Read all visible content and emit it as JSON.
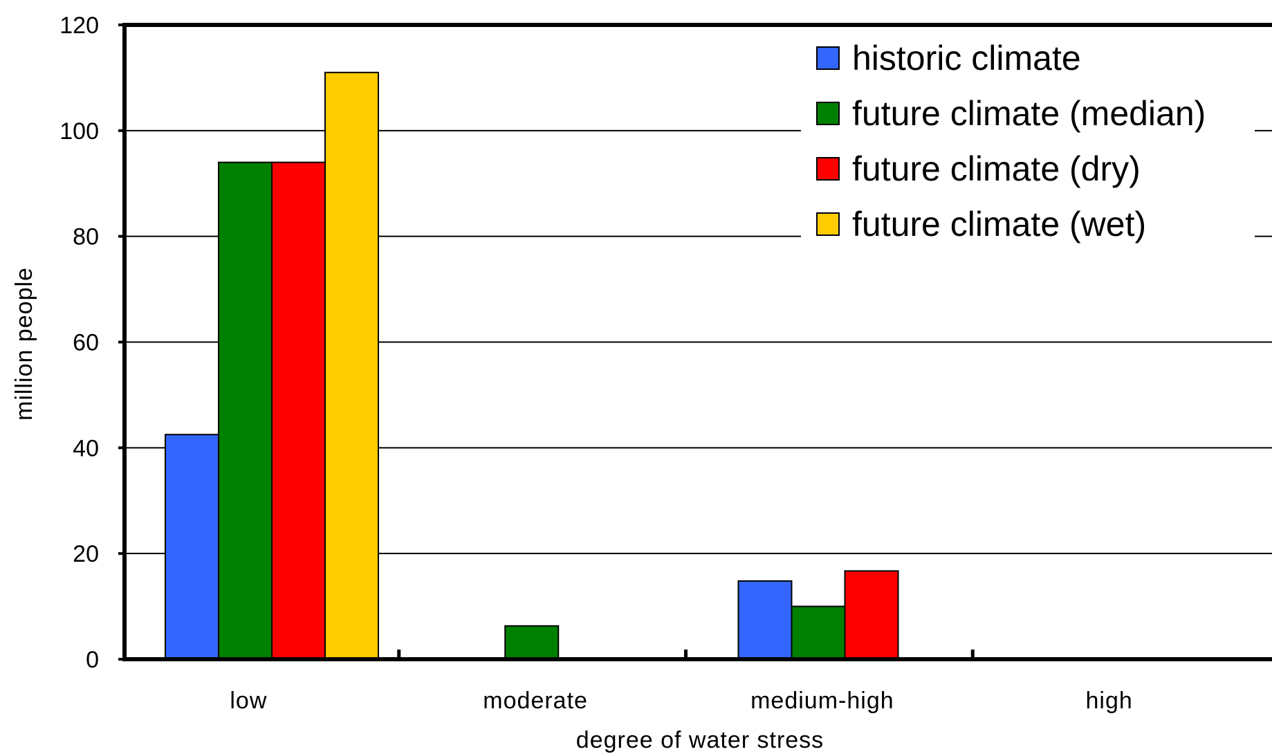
{
  "chart_data": {
    "type": "bar",
    "categories": [
      "low",
      "moderate",
      "medium-high",
      "high"
    ],
    "series": [
      {
        "name": "historic climate",
        "color": "#3366ff",
        "values": [
          42.5,
          0,
          14.8,
          0
        ]
      },
      {
        "name": "future climate (median)",
        "color": "#008000",
        "values": [
          94,
          6.3,
          10,
          0
        ]
      },
      {
        "name": "future climate (dry)",
        "color": "#ff0000",
        "values": [
          94,
          0,
          16.7,
          0
        ]
      },
      {
        "name": "future climate (wet)",
        "color": "#ffcc00",
        "values": [
          111,
          0,
          0,
          0
        ]
      }
    ],
    "xlabel": "degree of water stress",
    "ylabel": "million people",
    "ylim": [
      0,
      120
    ],
    "yticks": [
      "0",
      "20",
      "40",
      "60",
      "80",
      "100",
      "120"
    ],
    "grid": true,
    "legend_position": "top-right"
  }
}
